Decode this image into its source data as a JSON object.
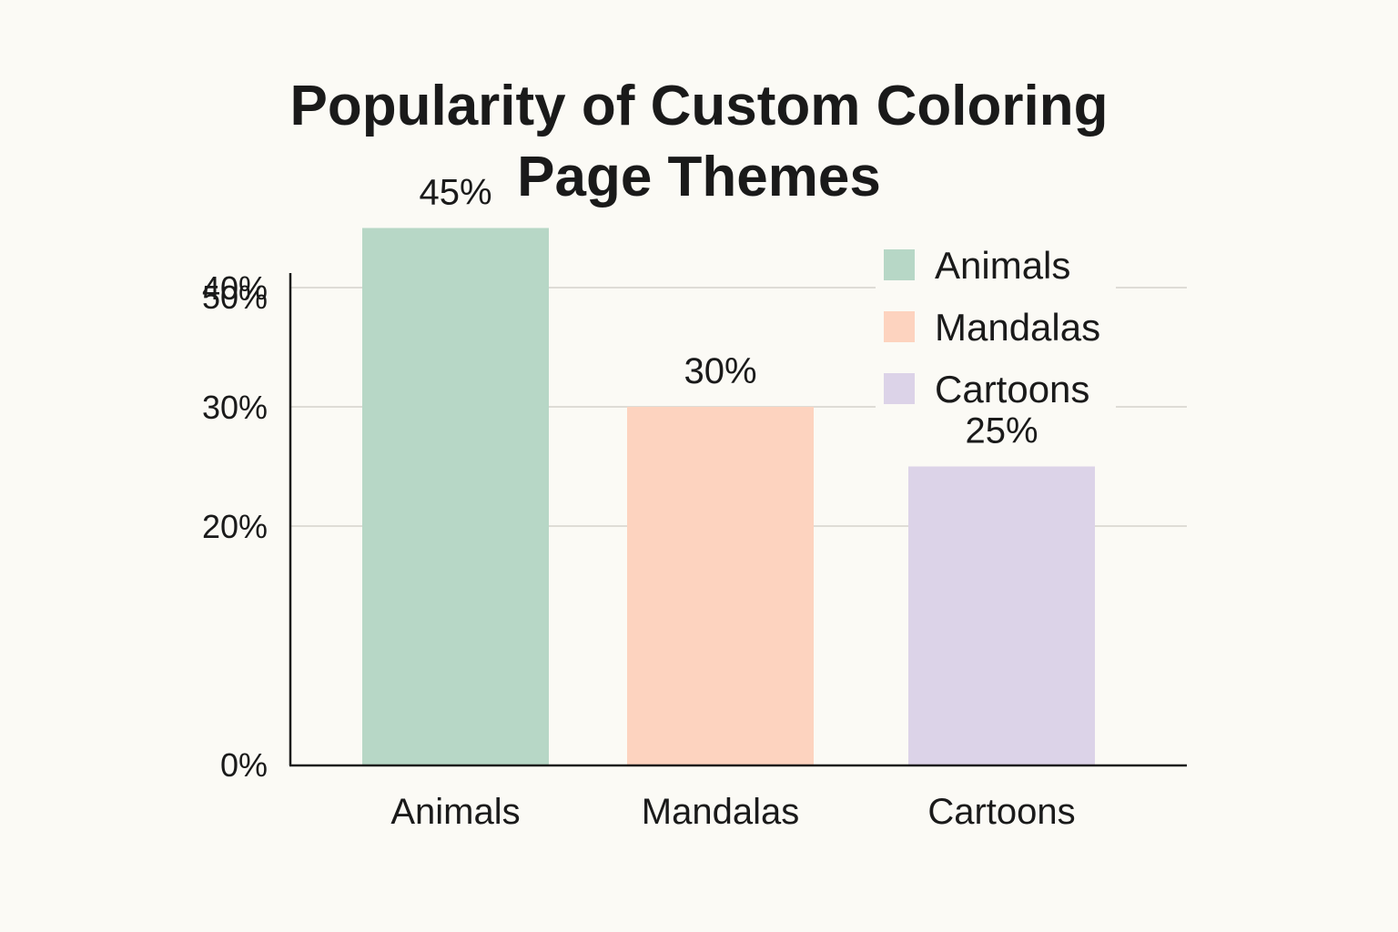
{
  "chart_data": {
    "type": "bar",
    "title_lines": [
      "Popularity of Custom Coloring",
      "Page Themes"
    ],
    "categories": [
      "Animals",
      "Mandalas",
      "Cartoons"
    ],
    "values": [
      45,
      30,
      25
    ],
    "value_labels": [
      "45%",
      "30%",
      "25%"
    ],
    "colors": [
      "#b7d7c6",
      "#fdd3bf",
      "#dcd3e8"
    ],
    "y_ticks": [
      0,
      20,
      30,
      40,
      50
    ],
    "y_tick_labels": [
      "0%",
      "20%",
      "30%",
      "40%",
      "50%"
    ],
    "ylim": [
      0,
      50
    ],
    "grid": true,
    "legend": {
      "placement": "top-right",
      "entries": [
        "Animals",
        "Mandalas",
        "Cartoons"
      ]
    },
    "xlabel": "",
    "ylabel": ""
  }
}
